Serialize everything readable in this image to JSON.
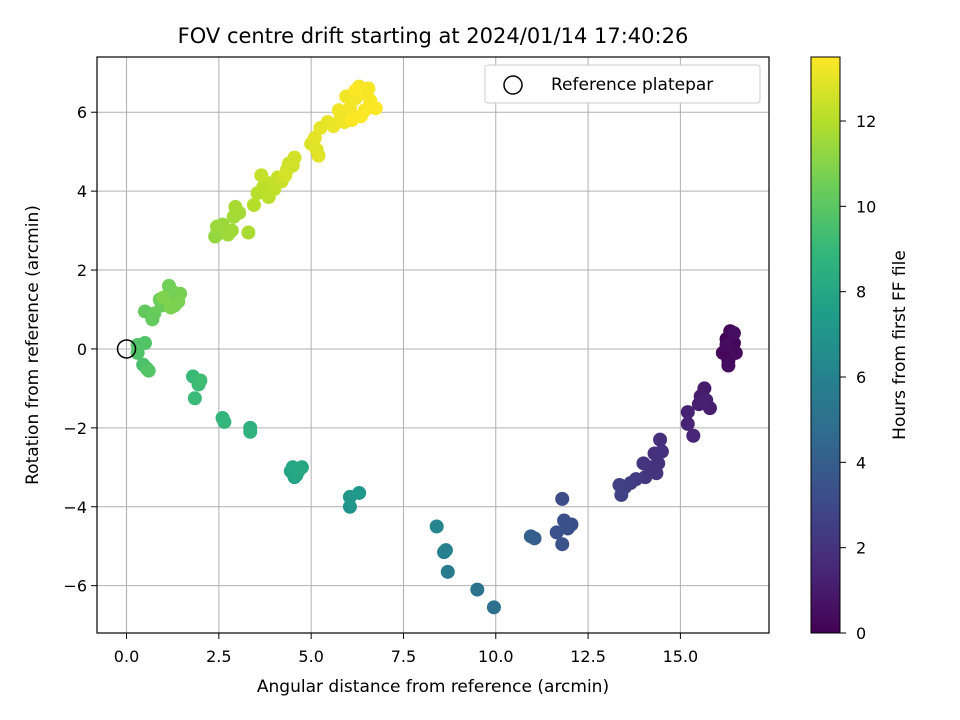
{
  "chart_data": {
    "type": "scatter",
    "title": "FOV centre drift starting at 2024/01/14 17:40:26",
    "xlabel": "Angular distance from reference (arcmin)",
    "ylabel": "Rotation from reference (arcmin)",
    "xlim": [
      -0.8,
      17.4
    ],
    "ylim": [
      -7.2,
      7.4
    ],
    "xticks": [
      "0.0",
      "2.5",
      "5.0",
      "7.5",
      "10.0",
      "12.5",
      "15.0"
    ],
    "yticks": [
      "−6",
      "−4",
      "−2",
      "0",
      "2",
      "4",
      "6"
    ],
    "grid": true,
    "legend": {
      "position": "top-right",
      "label": "Reference platepar"
    },
    "reference_point": {
      "x": 0,
      "y": 0
    },
    "colorbar": {
      "label": "Hours from first FF file",
      "range": [
        0,
        13.5
      ],
      "ticks": [
        "0",
        "2",
        "4",
        "6",
        "8",
        "10",
        "12"
      ],
      "colormap": "viridis"
    },
    "points": [
      {
        "x": 16.35,
        "y": 0.45,
        "h": 0.05
      },
      {
        "x": 16.25,
        "y": 0.25,
        "h": 0.1
      },
      {
        "x": 16.45,
        "y": 0.15,
        "h": 0.15
      },
      {
        "x": 16.15,
        "y": -0.1,
        "h": 0.2
      },
      {
        "x": 16.4,
        "y": -0.05,
        "h": 0.25
      },
      {
        "x": 16.3,
        "y": -0.3,
        "h": 0.3
      },
      {
        "x": 16.5,
        "y": -0.1,
        "h": 0.35
      },
      {
        "x": 16.25,
        "y": 0.1,
        "h": 0.4
      },
      {
        "x": 16.3,
        "y": -0.42,
        "h": 0.45
      },
      {
        "x": 16.45,
        "y": 0.4,
        "h": 0.5
      },
      {
        "x": 15.65,
        "y": -1.0,
        "h": 1.0
      },
      {
        "x": 15.55,
        "y": -1.2,
        "h": 1.05
      },
      {
        "x": 15.8,
        "y": -1.5,
        "h": 1.1
      },
      {
        "x": 15.5,
        "y": -1.4,
        "h": 1.15
      },
      {
        "x": 15.7,
        "y": -1.3,
        "h": 1.2
      },
      {
        "x": 15.2,
        "y": -1.6,
        "h": 1.3
      },
      {
        "x": 15.2,
        "y": -1.9,
        "h": 1.35
      },
      {
        "x": 15.35,
        "y": -2.2,
        "h": 1.4
      },
      {
        "x": 14.45,
        "y": -2.3,
        "h": 1.8
      },
      {
        "x": 14.3,
        "y": -2.65,
        "h": 1.85
      },
      {
        "x": 14.5,
        "y": -2.6,
        "h": 1.9
      },
      {
        "x": 14.4,
        "y": -2.9,
        "h": 1.95
      },
      {
        "x": 14.2,
        "y": -3.0,
        "h": 2.0
      },
      {
        "x": 14.35,
        "y": -3.15,
        "h": 2.05
      },
      {
        "x": 14.0,
        "y": -2.9,
        "h": 2.1
      },
      {
        "x": 14.05,
        "y": -3.25,
        "h": 2.2
      },
      {
        "x": 13.8,
        "y": -3.3,
        "h": 2.3
      },
      {
        "x": 13.65,
        "y": -3.4,
        "h": 2.4
      },
      {
        "x": 13.5,
        "y": -3.5,
        "h": 2.5
      },
      {
        "x": 13.35,
        "y": -3.45,
        "h": 2.6
      },
      {
        "x": 13.4,
        "y": -3.7,
        "h": 2.7
      },
      {
        "x": 11.8,
        "y": -3.8,
        "h": 3.2
      },
      {
        "x": 11.85,
        "y": -4.35,
        "h": 3.3
      },
      {
        "x": 12.05,
        "y": -4.45,
        "h": 3.35
      },
      {
        "x": 11.95,
        "y": -4.55,
        "h": 3.4
      },
      {
        "x": 11.65,
        "y": -4.65,
        "h": 3.45
      },
      {
        "x": 11.8,
        "y": -4.95,
        "h": 3.5
      },
      {
        "x": 11.05,
        "y": -4.8,
        "h": 4.0
      },
      {
        "x": 10.95,
        "y": -4.75,
        "h": 4.1
      },
      {
        "x": 9.95,
        "y": -6.55,
        "h": 5.0
      },
      {
        "x": 9.5,
        "y": -6.1,
        "h": 5.2
      },
      {
        "x": 8.7,
        "y": -5.65,
        "h": 5.6
      },
      {
        "x": 8.65,
        "y": -5.1,
        "h": 5.8
      },
      {
        "x": 8.6,
        "y": -5.15,
        "h": 5.9
      },
      {
        "x": 8.4,
        "y": -4.5,
        "h": 6.1
      },
      {
        "x": 6.05,
        "y": -4.0,
        "h": 7.0
      },
      {
        "x": 6.05,
        "y": -3.75,
        "h": 7.1
      },
      {
        "x": 6.3,
        "y": -3.65,
        "h": 7.2
      },
      {
        "x": 4.55,
        "y": -3.25,
        "h": 7.8
      },
      {
        "x": 4.45,
        "y": -3.1,
        "h": 7.85
      },
      {
        "x": 4.6,
        "y": -3.2,
        "h": 7.9
      },
      {
        "x": 4.5,
        "y": -3.0,
        "h": 7.95
      },
      {
        "x": 4.75,
        "y": -3.0,
        "h": 8.0
      },
      {
        "x": 4.65,
        "y": -3.1,
        "h": 8.05
      },
      {
        "x": 3.35,
        "y": -2.0,
        "h": 8.6
      },
      {
        "x": 3.35,
        "y": -2.1,
        "h": 8.65
      },
      {
        "x": 2.6,
        "y": -1.75,
        "h": 8.8
      },
      {
        "x": 2.65,
        "y": -1.85,
        "h": 8.85
      },
      {
        "x": 1.8,
        "y": -0.7,
        "h": 9.1
      },
      {
        "x": 1.85,
        "y": -1.25,
        "h": 9.15
      },
      {
        "x": 1.95,
        "y": -0.9,
        "h": 9.2
      },
      {
        "x": 2.0,
        "y": -0.8,
        "h": 9.25
      },
      {
        "x": 0.45,
        "y": -0.4,
        "h": 9.6
      },
      {
        "x": 0.55,
        "y": -0.5,
        "h": 9.65
      },
      {
        "x": 0.3,
        "y": -0.1,
        "h": 9.7
      },
      {
        "x": 0.3,
        "y": 0.1,
        "h": 9.75
      },
      {
        "x": 0.5,
        "y": 0.15,
        "h": 9.8
      },
      {
        "x": 0.6,
        "y": -0.55,
        "h": 9.85
      },
      {
        "x": 0.5,
        "y": 0.95,
        "h": 10.2
      },
      {
        "x": 0.7,
        "y": 0.75,
        "h": 10.25
      },
      {
        "x": 0.75,
        "y": 0.9,
        "h": 10.3
      },
      {
        "x": 0.95,
        "y": 1.1,
        "h": 10.35
      },
      {
        "x": 0.9,
        "y": 1.25,
        "h": 10.4
      },
      {
        "x": 1.05,
        "y": 1.2,
        "h": 10.45
      },
      {
        "x": 1.1,
        "y": 1.35,
        "h": 10.5
      },
      {
        "x": 1.15,
        "y": 1.6,
        "h": 10.55
      },
      {
        "x": 1.25,
        "y": 1.45,
        "h": 10.6
      },
      {
        "x": 1.3,
        "y": 1.1,
        "h": 10.65
      },
      {
        "x": 1.45,
        "y": 1.4,
        "h": 10.7
      },
      {
        "x": 1.4,
        "y": 1.2,
        "h": 10.75
      },
      {
        "x": 1.2,
        "y": 1.05,
        "h": 10.8
      },
      {
        "x": 1.0,
        "y": 1.3,
        "h": 10.85
      },
      {
        "x": 2.4,
        "y": 2.85,
        "h": 11.3
      },
      {
        "x": 2.55,
        "y": 2.95,
        "h": 11.35
      },
      {
        "x": 2.6,
        "y": 3.15,
        "h": 11.4
      },
      {
        "x": 2.45,
        "y": 3.1,
        "h": 11.45
      },
      {
        "x": 2.75,
        "y": 2.9,
        "h": 11.5
      },
      {
        "x": 2.85,
        "y": 3.0,
        "h": 11.55
      },
      {
        "x": 2.9,
        "y": 3.35,
        "h": 11.6
      },
      {
        "x": 3.05,
        "y": 3.45,
        "h": 11.65
      },
      {
        "x": 2.95,
        "y": 3.6,
        "h": 11.7
      },
      {
        "x": 3.3,
        "y": 2.95,
        "h": 11.75
      },
      {
        "x": 3.45,
        "y": 3.65,
        "h": 12.0
      },
      {
        "x": 3.55,
        "y": 3.95,
        "h": 12.05
      },
      {
        "x": 3.7,
        "y": 4.1,
        "h": 12.1
      },
      {
        "x": 3.85,
        "y": 3.85,
        "h": 12.15
      },
      {
        "x": 3.9,
        "y": 4.2,
        "h": 12.2
      },
      {
        "x": 4.0,
        "y": 4.05,
        "h": 12.25
      },
      {
        "x": 3.65,
        "y": 4.4,
        "h": 12.3
      },
      {
        "x": 4.1,
        "y": 4.35,
        "h": 12.35
      },
      {
        "x": 4.2,
        "y": 4.25,
        "h": 12.4
      },
      {
        "x": 4.35,
        "y": 4.55,
        "h": 12.45
      },
      {
        "x": 4.4,
        "y": 4.7,
        "h": 12.5
      },
      {
        "x": 4.5,
        "y": 4.65,
        "h": 12.55
      },
      {
        "x": 4.55,
        "y": 4.85,
        "h": 12.6
      },
      {
        "x": 4.3,
        "y": 4.4,
        "h": 12.65
      },
      {
        "x": 5.0,
        "y": 5.2,
        "h": 12.8
      },
      {
        "x": 5.15,
        "y": 5.05,
        "h": 12.85
      },
      {
        "x": 5.2,
        "y": 4.9,
        "h": 12.9
      },
      {
        "x": 5.1,
        "y": 5.35,
        "h": 12.95
      },
      {
        "x": 5.25,
        "y": 5.6,
        "h": 13.0
      },
      {
        "x": 5.45,
        "y": 5.75,
        "h": 13.05
      },
      {
        "x": 5.6,
        "y": 5.65,
        "h": 13.1
      },
      {
        "x": 5.8,
        "y": 5.85,
        "h": 13.15
      },
      {
        "x": 5.9,
        "y": 5.75,
        "h": 13.2
      },
      {
        "x": 5.75,
        "y": 6.05,
        "h": 13.22
      },
      {
        "x": 5.95,
        "y": 6.4,
        "h": 13.25
      },
      {
        "x": 6.05,
        "y": 6.1,
        "h": 13.28
      },
      {
        "x": 6.2,
        "y": 6.35,
        "h": 13.3
      },
      {
        "x": 6.3,
        "y": 6.65,
        "h": 13.32
      },
      {
        "x": 6.4,
        "y": 6.5,
        "h": 13.35
      },
      {
        "x": 6.55,
        "y": 6.6,
        "h": 13.37
      },
      {
        "x": 6.6,
        "y": 6.3,
        "h": 13.4
      },
      {
        "x": 6.45,
        "y": 6.05,
        "h": 13.42
      },
      {
        "x": 6.35,
        "y": 5.9,
        "h": 13.44
      },
      {
        "x": 6.75,
        "y": 6.1,
        "h": 13.46
      },
      {
        "x": 6.2,
        "y": 6.55,
        "h": 13.48
      },
      {
        "x": 6.1,
        "y": 5.8,
        "h": 13.5
      }
    ]
  }
}
